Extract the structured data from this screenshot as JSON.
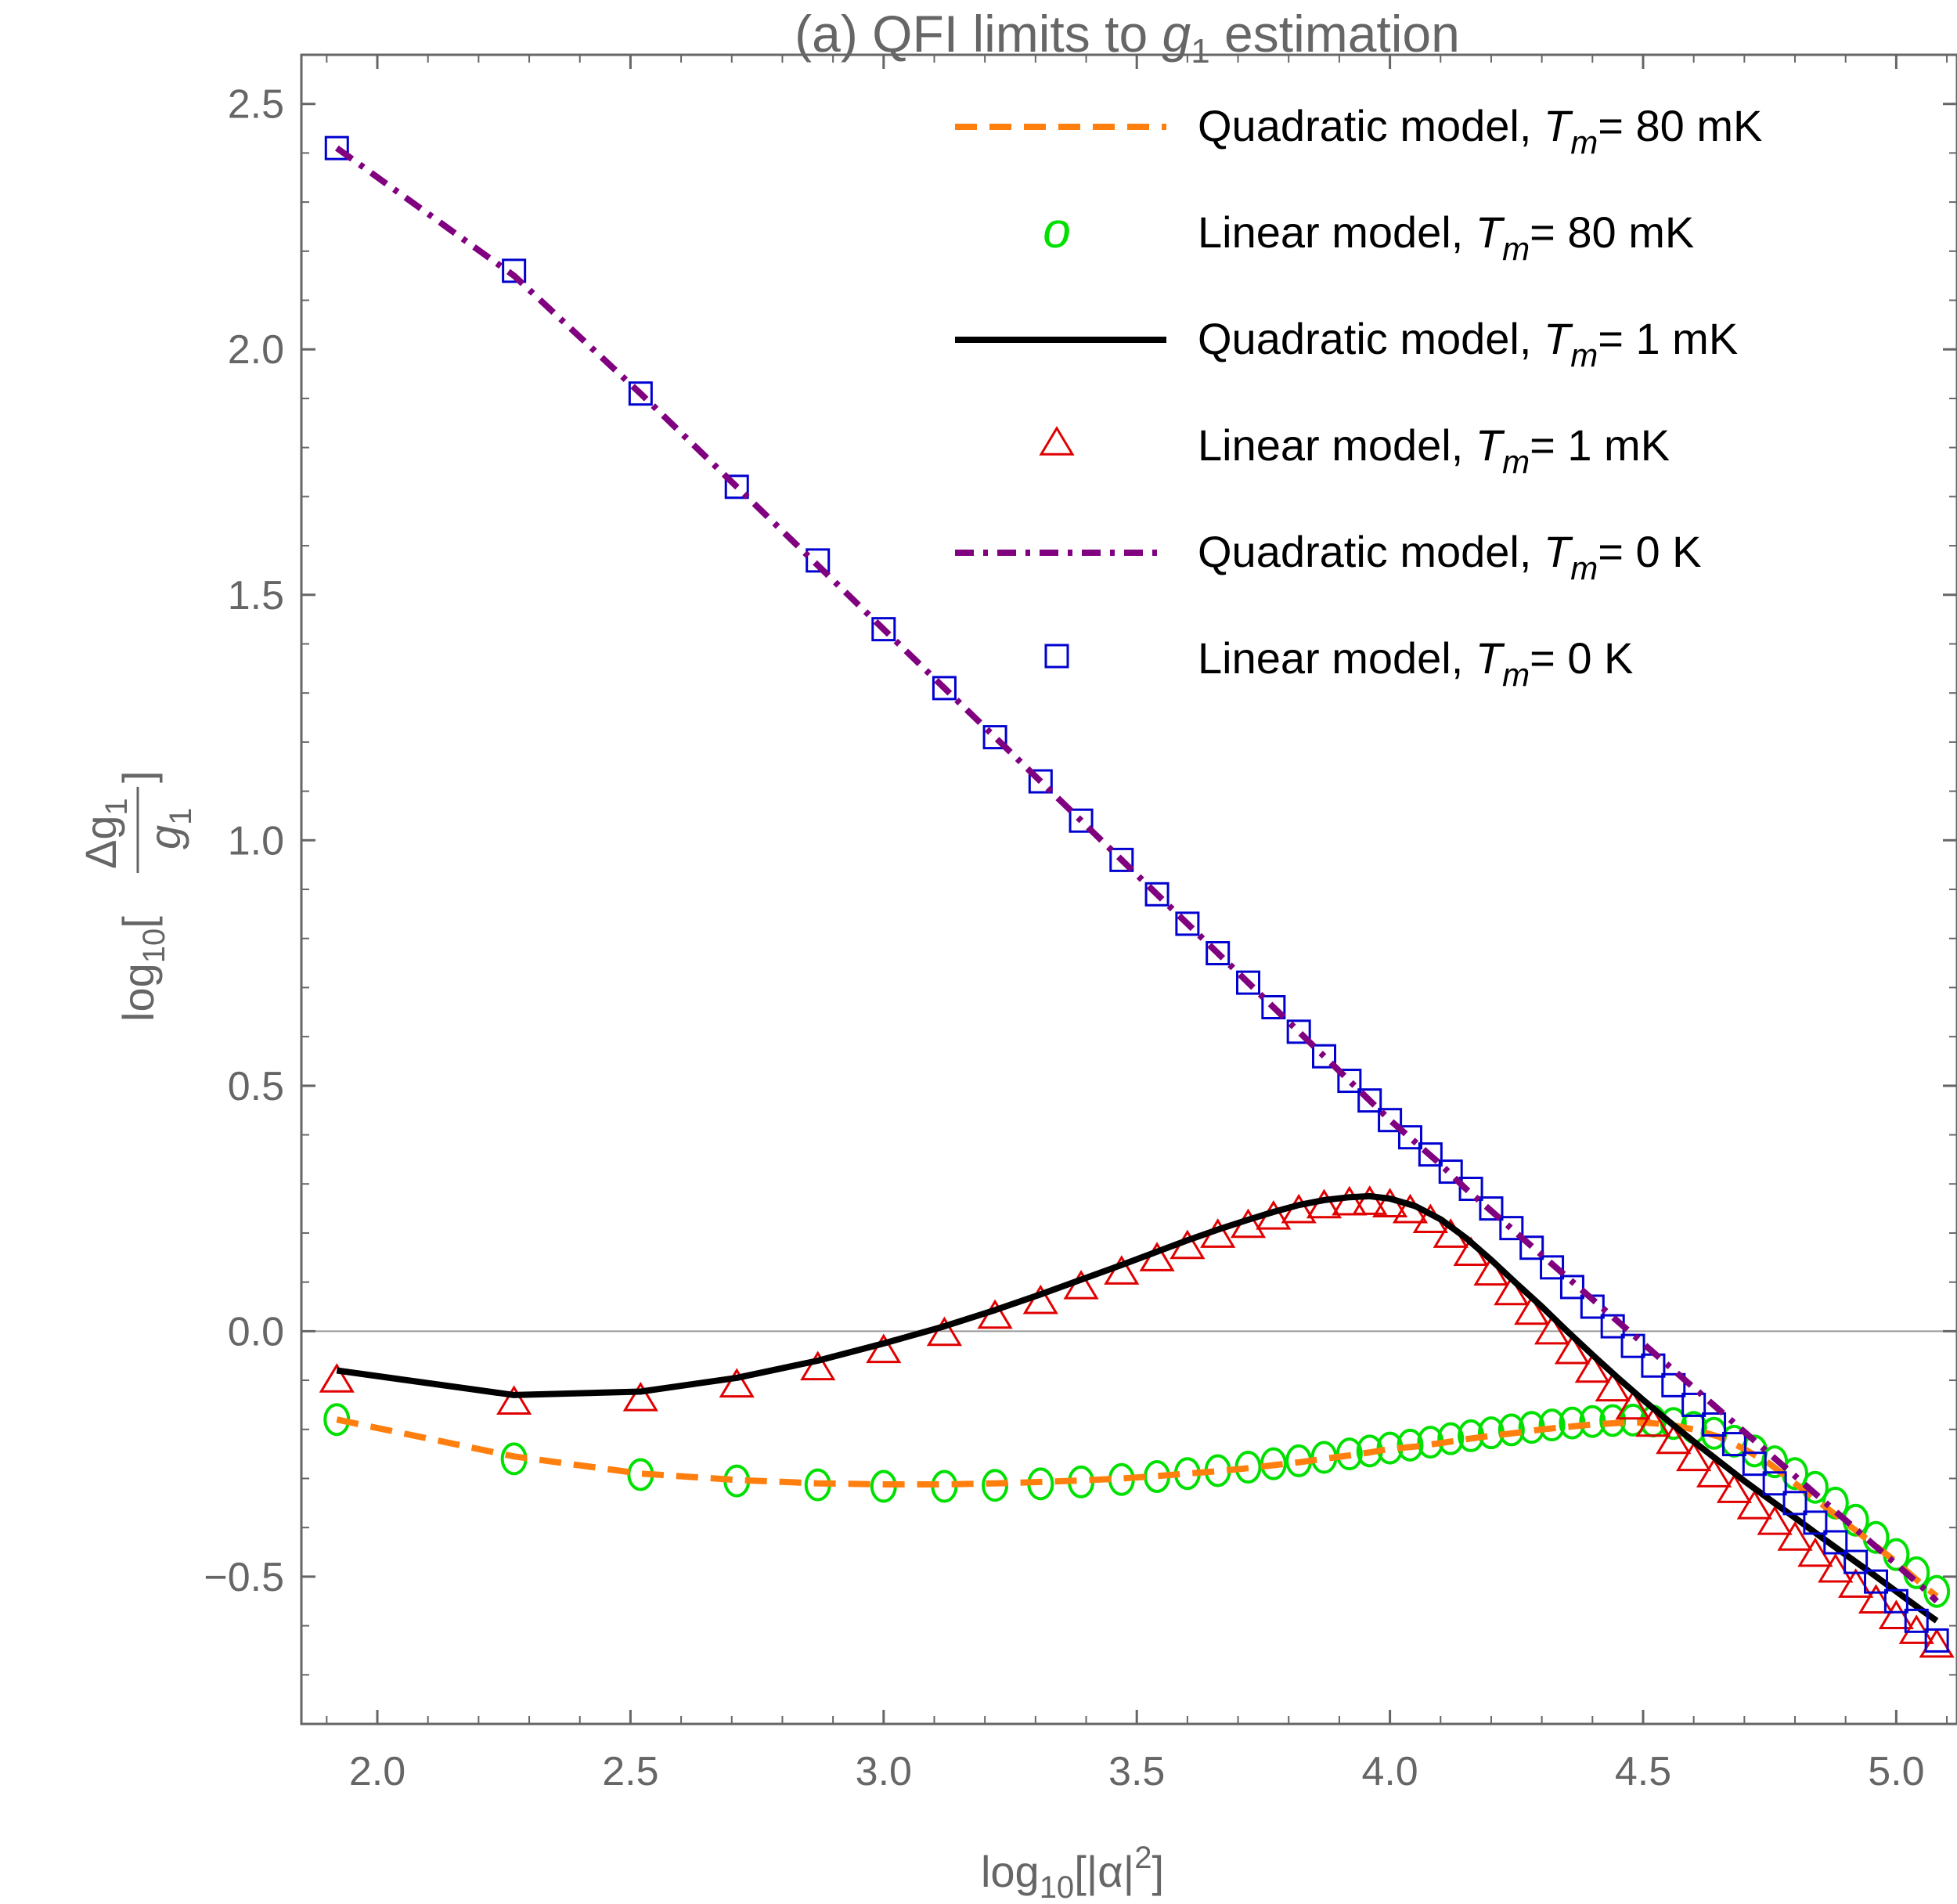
{
  "chart_data": {
    "type": "line",
    "title": {
      "prefix": "(a) QFI limits to ",
      "symbol": "g",
      "subscript": "1",
      "suffix": " estimation"
    },
    "xlabel": {
      "text": "log",
      "sub": "10",
      "middle": "[|α|",
      "sup": "2",
      "end": "]"
    },
    "ylabel": {
      "prefix": "log",
      "sub": "10",
      "open": "[",
      "numerator": "Δg",
      "numerator_sub": "1",
      "denominator": "g",
      "denominator_sub": "1",
      "close": "]"
    },
    "xlim": [
      1.85,
      5.12
    ],
    "ylim": [
      -0.8,
      2.6
    ],
    "xticks": [
      {
        "value": 2.0,
        "label": "2.0"
      },
      {
        "value": 2.5,
        "label": "2.5"
      },
      {
        "value": 3.0,
        "label": "3.0"
      },
      {
        "value": 3.5,
        "label": "3.5"
      },
      {
        "value": 4.0,
        "label": "4.0"
      },
      {
        "value": 4.5,
        "label": "4.5"
      },
      {
        "value": 5.0,
        "label": "5.0"
      }
    ],
    "yticks": [
      {
        "value": -0.5,
        "label": "−0.5"
      },
      {
        "value": 0.0,
        "label": "0.0"
      },
      {
        "value": 0.5,
        "label": "0.5"
      },
      {
        "value": 1.0,
        "label": "1.0"
      },
      {
        "value": 1.5,
        "label": "1.5"
      },
      {
        "value": 2.0,
        "label": "2.0"
      },
      {
        "value": 2.5,
        "label": "2.5"
      }
    ],
    "zero_line": true,
    "legend_position": "top-right",
    "series": [
      {
        "name": "quad-80mk",
        "style": "dashed-line",
        "color": "#ff7f0e",
        "legend": {
          "prefix": "Quadratic model, ",
          "sym": "T",
          "sub": "m",
          "suffix": "= 80 mK"
        },
        "x": [
          1.92,
          2.27,
          2.52,
          2.71,
          2.87,
          3.0,
          3.12,
          3.22,
          3.31,
          3.39,
          3.47,
          3.54,
          3.6,
          3.66,
          3.72,
          3.77,
          3.82,
          3.87,
          3.92,
          3.96,
          4.0,
          4.05,
          4.1,
          4.15,
          4.2,
          4.25,
          4.3,
          4.35,
          4.4,
          4.45,
          4.5,
          4.55,
          4.6,
          4.65,
          4.7,
          4.75,
          4.8,
          4.85,
          4.9,
          4.95,
          5.0,
          5.05,
          5.08
        ],
        "y": [
          -0.18,
          -0.255,
          -0.29,
          -0.303,
          -0.31,
          -0.312,
          -0.312,
          -0.31,
          -0.307,
          -0.304,
          -0.3,
          -0.295,
          -0.29,
          -0.285,
          -0.279,
          -0.273,
          -0.267,
          -0.26,
          -0.253,
          -0.247,
          -0.24,
          -0.235,
          -0.228,
          -0.22,
          -0.213,
          -0.207,
          -0.2,
          -0.195,
          -0.19,
          -0.187,
          -0.186,
          -0.19,
          -0.2,
          -0.215,
          -0.24,
          -0.27,
          -0.31,
          -0.35,
          -0.39,
          -0.43,
          -0.47,
          -0.515,
          -0.54
        ]
      },
      {
        "name": "lin-80mk",
        "style": "circle-markers",
        "color": "#00e000",
        "legend": {
          "marker_text": "o",
          "prefix": "Linear model, ",
          "sym": "T",
          "sub": "m",
          "suffix": "= 80 mK"
        },
        "x": [
          1.92,
          2.27,
          2.52,
          2.71,
          2.87,
          3.0,
          3.12,
          3.22,
          3.31,
          3.39,
          3.47,
          3.54,
          3.6,
          3.66,
          3.72,
          3.77,
          3.82,
          3.87,
          3.92,
          3.96,
          4.0,
          4.04,
          4.08,
          4.12,
          4.16,
          4.2,
          4.24,
          4.28,
          4.32,
          4.36,
          4.4,
          4.44,
          4.48,
          4.52,
          4.56,
          4.6,
          4.64,
          4.68,
          4.72,
          4.76,
          4.8,
          4.84,
          4.88,
          4.92,
          4.96,
          5.0,
          5.04,
          5.08
        ],
        "y": [
          -0.18,
          -0.26,
          -0.292,
          -0.305,
          -0.313,
          -0.316,
          -0.316,
          -0.314,
          -0.311,
          -0.307,
          -0.302,
          -0.296,
          -0.29,
          -0.284,
          -0.277,
          -0.27,
          -0.264,
          -0.257,
          -0.25,
          -0.244,
          -0.238,
          -0.232,
          -0.226,
          -0.219,
          -0.213,
          -0.207,
          -0.201,
          -0.196,
          -0.191,
          -0.187,
          -0.184,
          -0.182,
          -0.181,
          -0.183,
          -0.188,
          -0.196,
          -0.208,
          -0.224,
          -0.244,
          -0.266,
          -0.29,
          -0.318,
          -0.35,
          -0.385,
          -0.42,
          -0.455,
          -0.492,
          -0.53
        ]
      },
      {
        "name": "quad-1mk",
        "style": "solid-line",
        "color": "#000000",
        "legend": {
          "prefix": "Quadratic model, ",
          "sym": "T",
          "sub": "m",
          "suffix": "= 1 mK"
        },
        "x": [
          1.92,
          2.27,
          2.52,
          2.71,
          2.87,
          3.0,
          3.12,
          3.22,
          3.31,
          3.39,
          3.47,
          3.54,
          3.6,
          3.66,
          3.72,
          3.77,
          3.82,
          3.87,
          3.92,
          3.96,
          4.0,
          4.05,
          4.1,
          4.15,
          4.2,
          4.25,
          4.3,
          4.35,
          4.4,
          4.45,
          4.5,
          4.55,
          4.6,
          4.65,
          4.7,
          4.75,
          4.8,
          4.85,
          4.9,
          4.95,
          5.0,
          5.05,
          5.08
        ],
        "y": [
          -0.08,
          -0.13,
          -0.123,
          -0.095,
          -0.06,
          -0.025,
          0.01,
          0.043,
          0.075,
          0.105,
          0.135,
          0.162,
          0.185,
          0.207,
          0.227,
          0.243,
          0.257,
          0.267,
          0.273,
          0.275,
          0.27,
          0.255,
          0.228,
          0.19,
          0.145,
          0.097,
          0.05,
          0.0,
          -0.048,
          -0.095,
          -0.14,
          -0.183,
          -0.225,
          -0.265,
          -0.305,
          -0.343,
          -0.38,
          -0.418,
          -0.455,
          -0.492,
          -0.53,
          -0.568,
          -0.59
        ]
      },
      {
        "name": "lin-1mk",
        "style": "triangle-markers",
        "color": "#e00000",
        "legend": {
          "prefix": "Linear model, ",
          "sym": "T",
          "sub": "m",
          "suffix": "= 1 mK"
        },
        "x": [
          1.92,
          2.27,
          2.52,
          2.71,
          2.87,
          3.0,
          3.12,
          3.22,
          3.31,
          3.39,
          3.47,
          3.54,
          3.6,
          3.66,
          3.72,
          3.77,
          3.82,
          3.87,
          3.92,
          3.96,
          4.0,
          4.04,
          4.08,
          4.12,
          4.16,
          4.2,
          4.24,
          4.28,
          4.32,
          4.36,
          4.4,
          4.44,
          4.48,
          4.52,
          4.56,
          4.6,
          4.64,
          4.68,
          4.72,
          4.76,
          4.8,
          4.84,
          4.88,
          4.92,
          4.96,
          5.0,
          5.04,
          5.08
        ],
        "y": [
          -0.1,
          -0.145,
          -0.138,
          -0.11,
          -0.075,
          -0.04,
          -0.005,
          0.03,
          0.06,
          0.09,
          0.12,
          0.147,
          0.172,
          0.195,
          0.215,
          0.232,
          0.245,
          0.255,
          0.261,
          0.262,
          0.257,
          0.245,
          0.225,
          0.195,
          0.158,
          0.118,
          0.078,
          0.038,
          -0.002,
          -0.042,
          -0.08,
          -0.118,
          -0.155,
          -0.19,
          -0.225,
          -0.26,
          -0.293,
          -0.325,
          -0.358,
          -0.39,
          -0.422,
          -0.455,
          -0.487,
          -0.518,
          -0.55,
          -0.582,
          -0.612,
          -0.64
        ]
      },
      {
        "name": "quad-0k",
        "style": "dashdot-line",
        "color": "#800080",
        "legend": {
          "prefix": "Quadratic model, ",
          "sym": "T",
          "sub": "m",
          "suffix": "= 0 K"
        },
        "x": [
          1.92,
          2.27,
          2.52,
          2.71,
          2.87,
          3.0,
          3.12,
          3.22,
          3.31,
          3.39,
          3.47,
          3.54,
          3.6,
          3.66,
          3.72,
          3.77,
          3.82,
          3.87,
          3.92,
          3.96,
          4.0,
          4.05,
          4.1,
          4.15,
          4.2,
          4.25,
          4.3,
          4.35,
          4.4,
          4.45,
          4.5,
          4.55,
          4.6,
          4.65,
          4.7,
          4.75,
          4.8,
          4.85,
          4.9,
          4.95,
          5.0,
          5.05,
          5.08
        ],
        "y": [
          2.41,
          2.15,
          1.91,
          1.72,
          1.56,
          1.43,
          1.31,
          1.21,
          1.12,
          1.04,
          0.96,
          0.89,
          0.83,
          0.77,
          0.71,
          0.66,
          0.61,
          0.56,
          0.51,
          0.47,
          0.43,
          0.385,
          0.34,
          0.29,
          0.245,
          0.2,
          0.155,
          0.11,
          0.065,
          0.02,
          -0.025,
          -0.07,
          -0.115,
          -0.16,
          -0.205,
          -0.25,
          -0.295,
          -0.34,
          -0.385,
          -0.43,
          -0.475,
          -0.52,
          -0.55
        ]
      },
      {
        "name": "lin-0k",
        "style": "square-markers",
        "color": "#0000d0",
        "legend": {
          "prefix": "Linear model, ",
          "sym": "T",
          "sub": "m",
          "suffix": "= 0 K"
        },
        "x": [
          1.92,
          2.27,
          2.52,
          2.71,
          2.87,
          3.0,
          3.12,
          3.22,
          3.31,
          3.39,
          3.47,
          3.54,
          3.6,
          3.66,
          3.72,
          3.77,
          3.82,
          3.87,
          3.92,
          3.96,
          4.0,
          4.04,
          4.08,
          4.12,
          4.16,
          4.2,
          4.24,
          4.28,
          4.32,
          4.36,
          4.4,
          4.44,
          4.48,
          4.52,
          4.56,
          4.6,
          4.64,
          4.68,
          4.72,
          4.76,
          4.8,
          4.84,
          4.88,
          4.92,
          4.96,
          5.0,
          5.04,
          5.08
        ],
        "y": [
          2.41,
          2.16,
          1.91,
          1.72,
          1.57,
          1.43,
          1.31,
          1.21,
          1.12,
          1.04,
          0.96,
          0.89,
          0.83,
          0.77,
          0.71,
          0.66,
          0.61,
          0.56,
          0.51,
          0.47,
          0.43,
          0.395,
          0.36,
          0.325,
          0.29,
          0.25,
          0.21,
          0.17,
          0.13,
          0.09,
          0.05,
          0.01,
          -0.03,
          -0.07,
          -0.11,
          -0.15,
          -0.19,
          -0.23,
          -0.27,
          -0.31,
          -0.35,
          -0.39,
          -0.43,
          -0.47,
          -0.51,
          -0.55,
          -0.59,
          -0.63
        ]
      }
    ]
  }
}
